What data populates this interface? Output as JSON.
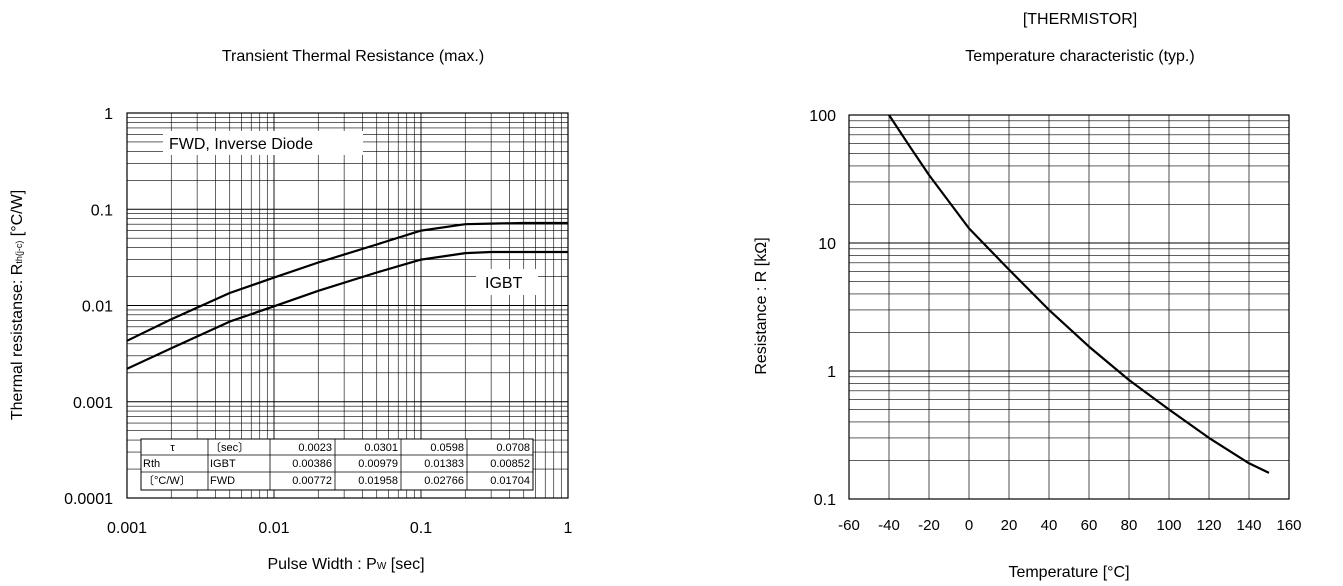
{
  "charts": {
    "transient": {
      "title": "Transient Thermal Resistance (max.)",
      "xlabel": "Pulse Width : P",
      "xlabel_sub": "W",
      "xlabel_unit": " [sec]",
      "ylabel": "Thermal resistanse: R",
      "ylabel_sub": "th(j-c)",
      "ylabel_unit": " [°C/W]",
      "xticks": [
        "0.001",
        "0.01",
        "0.1",
        "1"
      ],
      "yticks": [
        "0.0001",
        "0.001",
        "0.01",
        "0.1",
        "1"
      ],
      "label_fwd": "FWD, Inverse Diode",
      "label_igbt": "IGBT",
      "table": {
        "rows": [
          [
            "τ",
            "〔sec〕",
            "0.0023",
            "0.0301",
            "0.0598",
            "0.0708"
          ],
          [
            "Rth",
            "IGBT",
            "0.00386",
            "0.00979",
            "0.01383",
            "0.00852"
          ],
          [
            "〔°C/W〕",
            "FWD",
            "0.00772",
            "0.01958",
            "0.02766",
            "0.01704"
          ]
        ]
      }
    },
    "thermistor": {
      "title_line1": "[THERMISTOR]",
      "title_line2": "Temperature characteristic (typ.)",
      "xlabel": "Temperature [°C]",
      "ylabel": "Resistance : R [kΩ]",
      "xticks": [
        "-60",
        "-40",
        "-20",
        "0",
        "20",
        "40",
        "60",
        "80",
        "100",
        "120",
        "140",
        "160"
      ],
      "yticks": [
        "0.1",
        "1",
        "10",
        "100"
      ]
    }
  },
  "chart_data": [
    {
      "type": "line",
      "title": "Transient Thermal Resistance (max.)",
      "xlabel": "Pulse Width : Pw [sec]",
      "ylabel": "Thermal resistanse: Rth(j-c) [°C/W]",
      "xscale": "log",
      "yscale": "log",
      "xlim": [
        0.001,
        1
      ],
      "ylim": [
        0.0001,
        1
      ],
      "grid": true,
      "series": [
        {
          "name": "FWD, Inverse Diode",
          "x": [
            0.001,
            0.002,
            0.005,
            0.01,
            0.02,
            0.05,
            0.1,
            0.2,
            0.3,
            0.5,
            1
          ],
          "y": [
            0.0043,
            0.0072,
            0.0135,
            0.0195,
            0.028,
            0.043,
            0.06,
            0.07,
            0.071,
            0.072,
            0.072
          ]
        },
        {
          "name": "IGBT",
          "x": [
            0.001,
            0.002,
            0.005,
            0.01,
            0.02,
            0.05,
            0.1,
            0.2,
            0.3,
            0.5,
            1
          ],
          "y": [
            0.0022,
            0.0036,
            0.0068,
            0.0098,
            0.0142,
            0.022,
            0.03,
            0.035,
            0.036,
            0.036,
            0.036
          ]
        }
      ]
    },
    {
      "type": "line",
      "title": "[THERMISTOR] Temperature characteristic (typ.)",
      "xlabel": "Temperature [°C]",
      "ylabel": "Resistance : R [kΩ]",
      "xscale": "linear",
      "yscale": "log",
      "xlim": [
        -60,
        160
      ],
      "ylim": [
        0.1,
        100
      ],
      "grid": true,
      "series": [
        {
          "x": [
            -40,
            -30,
            -20,
            0,
            20,
            40,
            60,
            80,
            100,
            120,
            140,
            150
          ],
          "y": [
            100,
            58,
            34,
            13,
            6.2,
            3.0,
            1.55,
            0.85,
            0.5,
            0.3,
            0.19,
            0.16
          ]
        }
      ]
    }
  ]
}
